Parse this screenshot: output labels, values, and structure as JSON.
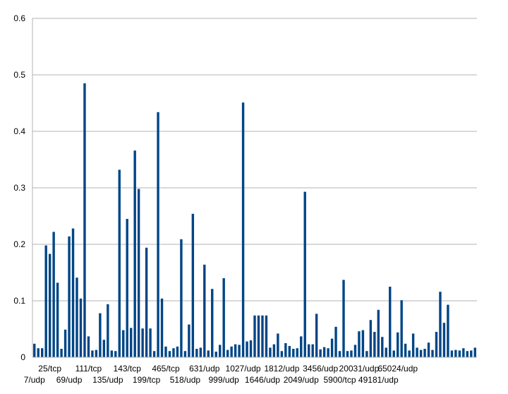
{
  "colors": {
    "bar": "#004586",
    "grid": "#b3b3b3",
    "axis": "#b3b3b3",
    "background": "#ffffff"
  },
  "chart_data": {
    "type": "bar",
    "title": "",
    "xlabel": "",
    "ylabel": "",
    "ylim": [
      0,
      0.6
    ],
    "yticks": [
      0,
      0.1,
      0.2,
      0.3,
      0.4,
      0.5,
      0.6
    ],
    "grid": true,
    "legend": "none",
    "xtick_labels": [
      {
        "label": "7/udp",
        "index": 0,
        "row": 2
      },
      {
        "label": "25/tcp",
        "index": 4,
        "row": 1
      },
      {
        "label": "69/udp",
        "index": 9,
        "row": 2
      },
      {
        "label": "111/tcp",
        "index": 14,
        "row": 1
      },
      {
        "label": "135/udp",
        "index": 19,
        "row": 2
      },
      {
        "label": "143/tcp",
        "index": 24,
        "row": 1
      },
      {
        "label": "199/tcp",
        "index": 29,
        "row": 2
      },
      {
        "label": "465/tcp",
        "index": 34,
        "row": 1
      },
      {
        "label": "518/udp",
        "index": 39,
        "row": 2
      },
      {
        "label": "631/udp",
        "index": 44,
        "row": 1
      },
      {
        "label": "999/udp",
        "index": 49,
        "row": 2
      },
      {
        "label": "1027/udp",
        "index": 54,
        "row": 1
      },
      {
        "label": "1646/udp",
        "index": 59,
        "row": 2
      },
      {
        "label": "1812/udp",
        "index": 64,
        "row": 1
      },
      {
        "label": "2049/udp",
        "index": 69,
        "row": 2
      },
      {
        "label": "3456/udp",
        "index": 74,
        "row": 1
      },
      {
        "label": "5900/tcp",
        "index": 79,
        "row": 2
      },
      {
        "label": "20031/udp",
        "index": 84,
        "row": 1
      },
      {
        "label": "49181/udp",
        "index": 89,
        "row": 2
      },
      {
        "label": "65024/udp",
        "index": 94,
        "row": 1
      }
    ],
    "values": [
      0.024,
      0.016,
      0.016,
      0.198,
      0.183,
      0.222,
      0.132,
      0.015,
      0.049,
      0.214,
      0.228,
      0.141,
      0.104,
      0.485,
      0.037,
      0.012,
      0.013,
      0.078,
      0.031,
      0.094,
      0.012,
      0.011,
      0.332,
      0.048,
      0.245,
      0.052,
      0.366,
      0.298,
      0.051,
      0.194,
      0.051,
      0.011,
      0.434,
      0.104,
      0.019,
      0.011,
      0.016,
      0.019,
      0.209,
      0.011,
      0.058,
      0.254,
      0.015,
      0.017,
      0.164,
      0.012,
      0.121,
      0.01,
      0.022,
      0.14,
      0.013,
      0.019,
      0.023,
      0.022,
      0.451,
      0.028,
      0.03,
      0.074,
      0.074,
      0.074,
      0.074,
      0.017,
      0.023,
      0.042,
      0.011,
      0.025,
      0.02,
      0.015,
      0.016,
      0.037,
      0.293,
      0.023,
      0.023,
      0.077,
      0.014,
      0.018,
      0.016,
      0.033,
      0.054,
      0.011,
      0.137,
      0.011,
      0.012,
      0.022,
      0.046,
      0.048,
      0.011,
      0.066,
      0.045,
      0.084,
      0.036,
      0.017,
      0.125,
      0.012,
      0.044,
      0.101,
      0.024,
      0.012,
      0.042,
      0.017,
      0.013,
      0.015,
      0.026,
      0.013,
      0.045,
      0.116,
      0.061,
      0.093,
      0.012,
      0.013,
      0.012,
      0.016,
      0.011,
      0.012,
      0.017
    ]
  }
}
